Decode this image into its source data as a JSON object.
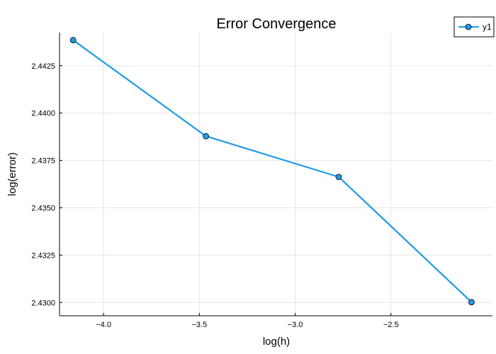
{
  "chart_data": {
    "type": "line",
    "title": "Error Convergence",
    "xlabel": "log(h)",
    "ylabel": "log(error)",
    "xlim": [
      -4.23,
      -1.97
    ],
    "ylim": [
      2.4293,
      2.44425
    ],
    "xticks": [
      -4.0,
      -3.5,
      -3.0,
      -2.5
    ],
    "xtick_labels": [
      "−4.0",
      "−3.5",
      "−3.0",
      "−2.5"
    ],
    "yticks": [
      2.43,
      2.4325,
      2.435,
      2.4375,
      2.44,
      2.4425
    ],
    "ytick_labels": [
      "2.4300",
      "2.4325",
      "2.4350",
      "2.4375",
      "2.4400",
      "2.4425"
    ],
    "grid": true,
    "legend_position": "top-right",
    "series": [
      {
        "name": "y1",
        "color": "#1f9ae6",
        "x": [
          -4.1589,
          -3.4657,
          -2.7726,
          -2.0794
        ],
        "y": [
          2.44385,
          2.43878,
          2.43663,
          2.43002
        ]
      }
    ]
  }
}
